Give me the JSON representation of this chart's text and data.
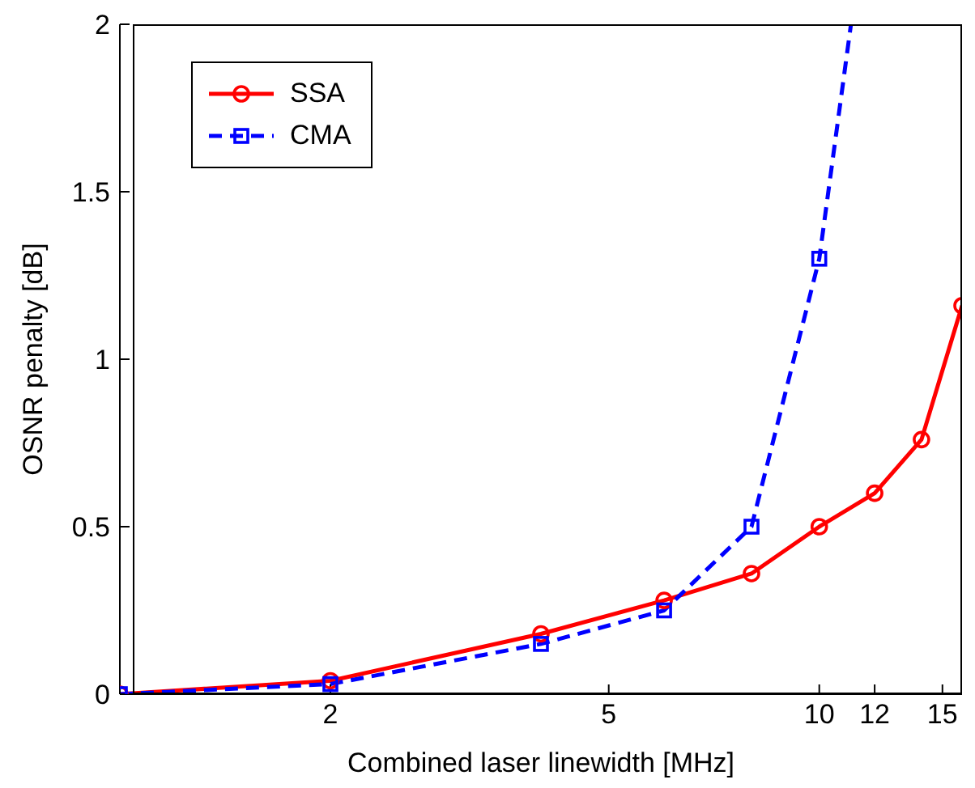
{
  "chart_data": {
    "type": "line",
    "xlabel": "Combined laser linewidth [MHz]",
    "ylabel": "OSNR penalty  [dB]",
    "log": "x",
    "xlim": [
      1,
      16
    ],
    "xticks": [
      {
        "value": 1,
        "label": null
      },
      2,
      5,
      10,
      12,
      15
    ],
    "ylim": [
      0,
      2
    ],
    "yticks": [
      0,
      0.5,
      1,
      1.5,
      2
    ],
    "grid": false,
    "legend": "top left",
    "series": [
      {
        "name": "SSA",
        "color": "#ff0000",
        "marker": "circle",
        "line_style": "solid",
        "x": [
          1,
          2,
          4,
          6,
          8,
          10,
          12,
          14,
          16
        ],
        "values": [
          0,
          0.04,
          0.18,
          0.28,
          0.36,
          0.5,
          0.6,
          0.76,
          1.16
        ]
      },
      {
        "name": "CMA",
        "color": "#0000ff",
        "marker": "square",
        "line_style": "dashed",
        "x": [
          1,
          2,
          4,
          6,
          8,
          10,
          11.1
        ],
        "values": [
          0,
          0.03,
          0.15,
          0.25,
          0.5,
          1.3,
          2
        ]
      }
    ]
  }
}
